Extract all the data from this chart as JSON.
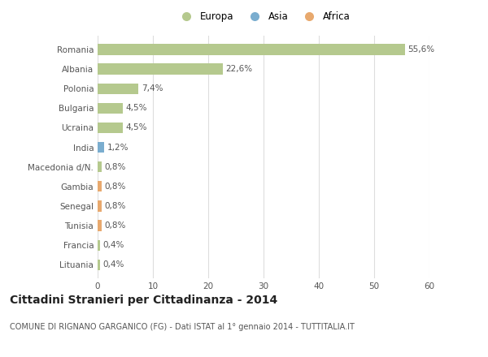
{
  "countries": [
    "Romania",
    "Albania",
    "Polonia",
    "Bulgaria",
    "Ucraina",
    "India",
    "Macedonia d/N.",
    "Gambia",
    "Senegal",
    "Tunisia",
    "Francia",
    "Lituania"
  ],
  "values": [
    55.6,
    22.6,
    7.4,
    4.5,
    4.5,
    1.2,
    0.8,
    0.8,
    0.8,
    0.8,
    0.4,
    0.4
  ],
  "labels": [
    "55,6%",
    "22,6%",
    "7,4%",
    "4,5%",
    "4,5%",
    "1,2%",
    "0,8%",
    "0,8%",
    "0,8%",
    "0,8%",
    "0,4%",
    "0,4%"
  ],
  "colors": [
    "#b5c98e",
    "#b5c98e",
    "#b5c98e",
    "#b5c98e",
    "#b5c98e",
    "#7aadcf",
    "#b5c98e",
    "#e8a96e",
    "#e8a96e",
    "#e8a96e",
    "#b5c98e",
    "#b5c98e"
  ],
  "legend": [
    {
      "label": "Europa",
      "color": "#b5c98e"
    },
    {
      "label": "Asia",
      "color": "#7aadcf"
    },
    {
      "label": "Africa",
      "color": "#e8a96e"
    }
  ],
  "xlim": [
    0,
    60
  ],
  "xticks": [
    0,
    10,
    20,
    30,
    40,
    50,
    60
  ],
  "title": "Cittadini Stranieri per Cittadinanza - 2014",
  "subtitle": "COMUNE DI RIGNANO GARGANICO (FG) - Dati ISTAT al 1° gennaio 2014 - TUTTITALIA.IT",
  "background_color": "#ffffff",
  "grid_color": "#dddddd",
  "bar_height": 0.55,
  "label_fontsize": 7.5,
  "tick_fontsize": 7.5,
  "title_fontsize": 10,
  "subtitle_fontsize": 7
}
